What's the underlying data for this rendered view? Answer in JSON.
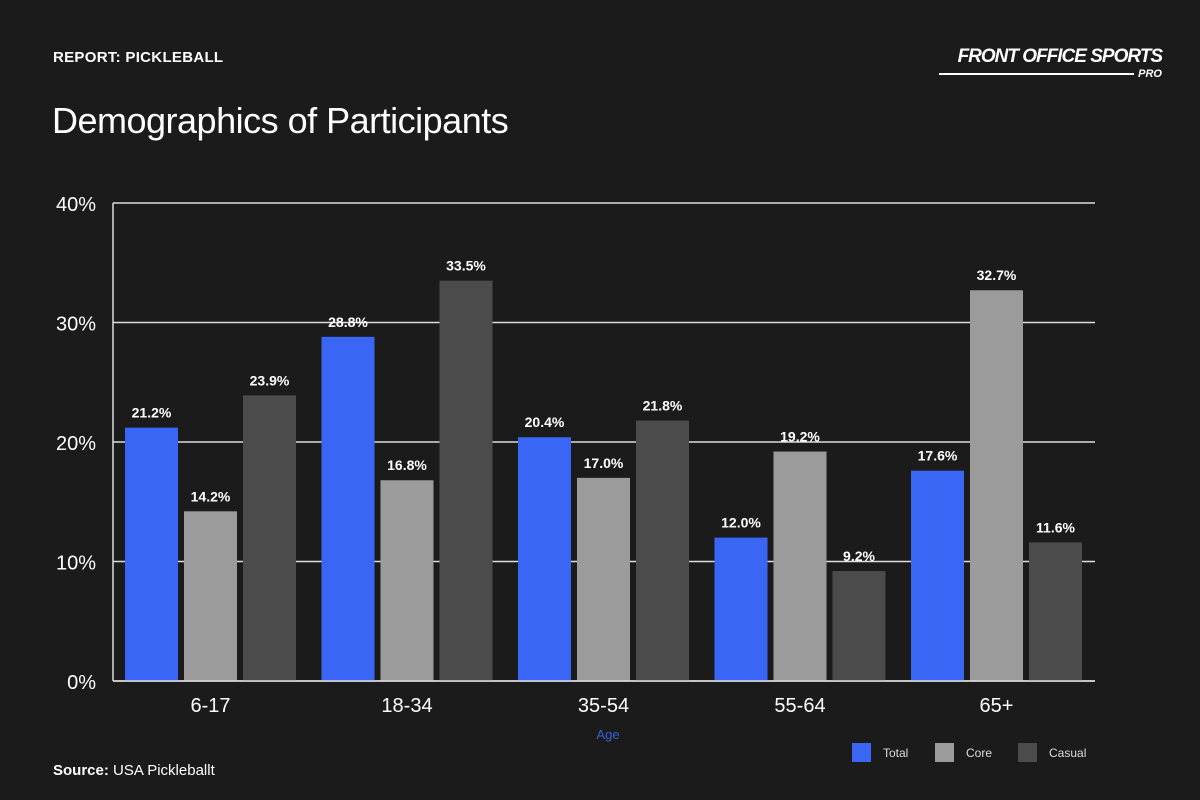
{
  "header": {
    "kicker": "REPORT: PICKLEBALL",
    "title": "Demographics of Participants",
    "logo_text": "FRONT OFFICE SPORTS",
    "logo_sub": "PRO"
  },
  "footer": {
    "source_label": "Source:",
    "source_value": "USA Pickleballt"
  },
  "chart_data": {
    "type": "bar",
    "title": "Demographics of Participants",
    "xlabel": "Age",
    "ylabel": "",
    "categories": [
      "6-17",
      "18-34",
      "35-54",
      "55-64",
      "65+"
    ],
    "series": [
      {
        "name": "Total",
        "values": [
          21.2,
          28.8,
          20.4,
          12.0,
          17.6
        ],
        "color": "#3a66f5"
      },
      {
        "name": "Core",
        "values": [
          14.2,
          16.8,
          17.0,
          19.2,
          32.7
        ],
        "color": "#9b9b9b"
      },
      {
        "name": "Casual",
        "values": [
          23.9,
          33.5,
          21.8,
          9.2,
          11.6
        ],
        "color": "#4b4b4b"
      }
    ],
    "ylim": [
      0,
      40
    ],
    "yticks": [
      "0%",
      "10%",
      "20%",
      "30%",
      "40%"
    ],
    "grid": true,
    "legend": "bottom-right",
    "xlabel_color": "#3a5fd9"
  }
}
